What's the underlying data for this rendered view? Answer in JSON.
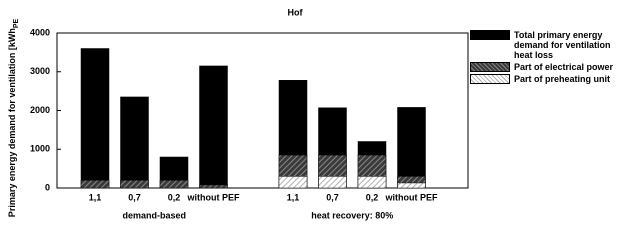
{
  "chart_data": {
    "type": "bar",
    "title": "Hof",
    "y_label": "Primary energy demand for ventilation [kWh",
    "y_label_sub": "PE",
    "categories": [
      "1,1",
      "0,7",
      "0,2",
      "without PEF",
      "1,1",
      "0,7",
      "0,2",
      "without PEF"
    ],
    "groups": [
      "demand-based",
      "heat recovery: 80%"
    ],
    "series": [
      {
        "name": "Total primary energy demand for ventilation heat loss",
        "color": "#000000",
        "hatch": false,
        "values": [
          3600,
          2350,
          800,
          3150,
          2780,
          2070,
          1200,
          2080
        ]
      },
      {
        "name": "Part of electrical power",
        "color": "#3a3a3a",
        "hatch": true,
        "values": [
          200,
          200,
          200,
          80,
          850,
          850,
          850,
          300
        ]
      },
      {
        "name": "Part of preheating unit",
        "color": "#b0b0b0",
        "hatch": true,
        "values": [
          0,
          0,
          0,
          0,
          300,
          300,
          300,
          130
        ]
      }
    ],
    "ylim": [
      0,
      4000
    ],
    "yticks": [
      0,
      1000,
      2000,
      3000,
      4000
    ],
    "grid": false,
    "legend": "right"
  }
}
